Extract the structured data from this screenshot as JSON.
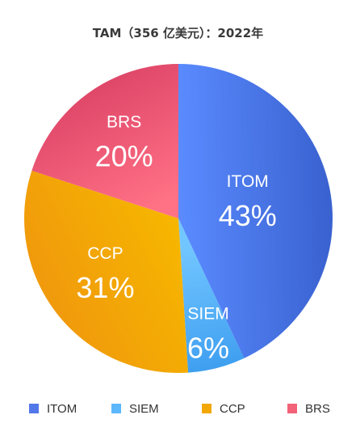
{
  "chart_data": {
    "type": "pie",
    "title": "TAM（356 亿美元）：2022年",
    "slices": [
      {
        "name": "ITOM",
        "value": 43,
        "label": "43%",
        "color": "#5277e8",
        "light": "#5a8bff",
        "dark": "#3a62d0"
      },
      {
        "name": "SIEM",
        "value": 6,
        "label": "6%",
        "color": "#5cb8fb",
        "light": "#72c6ff",
        "dark": "#3f9ff0"
      },
      {
        "name": "CCP",
        "value": 31,
        "label": "31%",
        "color": "#f3a705",
        "light": "#f6b500",
        "dark": "#f09a0c"
      },
      {
        "name": "BRS",
        "value": 20,
        "label": "20%",
        "color": "#f26278",
        "light": "#ff7185",
        "dark": "#e0486a"
      }
    ],
    "legend_position": "bottom"
  }
}
